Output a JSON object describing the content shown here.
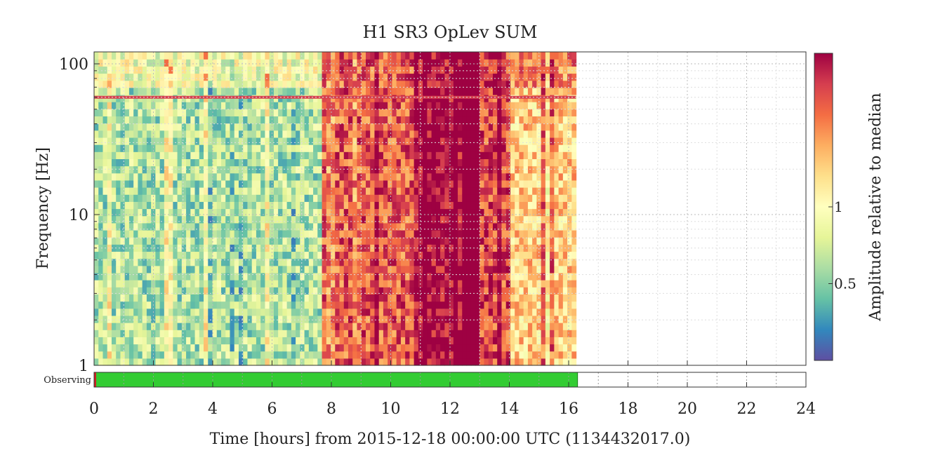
{
  "chart_data": {
    "type": "heatmap",
    "title": "H1 SR3 OpLev SUM",
    "xlabel": "Time [hours] from 2015-12-18 00:00:00 UTC (1134432017.0)",
    "ylabel": "Frequency [Hz]",
    "colorbar_label": "Amplitude relative to median",
    "x_unit": "hours",
    "xlim": [
      0,
      24
    ],
    "ylim": [
      1,
      120
    ],
    "yscale": "log",
    "x_ticks": [
      "0",
      "2",
      "4",
      "6",
      "8",
      "10",
      "12",
      "14",
      "16",
      "18",
      "20",
      "22",
      "24"
    ],
    "x_tick_values": [
      0,
      2,
      4,
      6,
      8,
      10,
      12,
      14,
      16,
      18,
      20,
      22,
      24
    ],
    "y_ticks": [
      "1",
      "10",
      "100"
    ],
    "y_tick_values": [
      1,
      10,
      100
    ],
    "colorbar_ticks": [
      "0.5",
      "1"
    ],
    "colorbar_tick_values": [
      0.5,
      1
    ],
    "colorbar_range": [
      0.25,
      4
    ],
    "colorscale": [
      "#5e4fa2",
      "#3288bd",
      "#66c2a5",
      "#abdda4",
      "#e6f598",
      "#ffffbf",
      "#fee08b",
      "#fdae61",
      "#f46d43",
      "#d53e4f",
      "#9e0142"
    ],
    "data_end_hours": 16.25,
    "grid": true,
    "approx_amplitude_by_time": [
      {
        "hours": [
          0.0,
          7.75
        ],
        "amplitude": 0.6
      },
      {
        "hours": [
          7.75,
          10.75
        ],
        "amplitude": 2.5
      },
      {
        "hours": [
          10.75,
          13.0
        ],
        "amplitude": 4.0
      },
      {
        "hours": [
          13.0,
          14.1
        ],
        "amplitude": 2.8
      },
      {
        "hours": [
          14.1,
          16.25
        ],
        "amplitude": 1.4
      }
    ],
    "line_features": [
      {
        "frequency_hz": 60,
        "amplitude": 3.0
      }
    ],
    "segments": {
      "label": "Observing",
      "active_color": "#33cc33",
      "flag_color": "#cc2222",
      "active_intervals": [
        [
          0.05,
          16.3
        ]
      ],
      "flag_intervals": [
        [
          0.0,
          0.05
        ]
      ]
    }
  }
}
